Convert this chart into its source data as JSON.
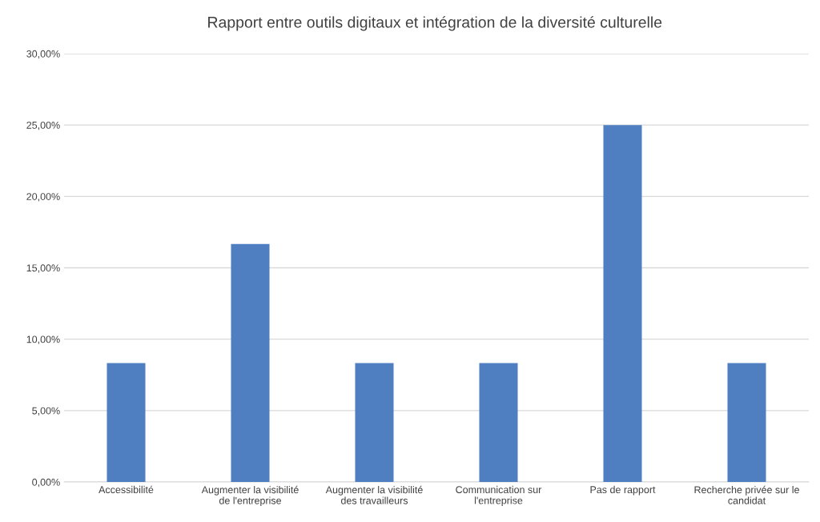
{
  "chart_data": {
    "type": "bar",
    "title": "Rapport entre outils digitaux et intégration de la diversité culturelle",
    "categories": [
      "Accessibilité",
      "Augmenter la visibilité\nde l'entreprise",
      "Augmenter la visibilité\ndes travailleurs",
      "Communication sur\nl'entreprise",
      "Pas de rapport",
      "Recherche privée sur le\ncandidat"
    ],
    "values": [
      8.33,
      16.67,
      8.33,
      8.33,
      25,
      8.33
    ],
    "color": "#4f7fc1",
    "ylim": [
      0,
      30
    ],
    "yticks": [
      {
        "value": 0,
        "label": "0,00%"
      },
      {
        "value": 5,
        "label": "5,00%"
      },
      {
        "value": 10,
        "label": "10,00%"
      },
      {
        "value": 15,
        "label": "15,00%"
      },
      {
        "value": 20,
        "label": "20,00%"
      },
      {
        "value": 25,
        "label": "25,00%"
      },
      {
        "value": 30,
        "label": "30,00%"
      }
    ],
    "grid": "y",
    "legend": false
  }
}
